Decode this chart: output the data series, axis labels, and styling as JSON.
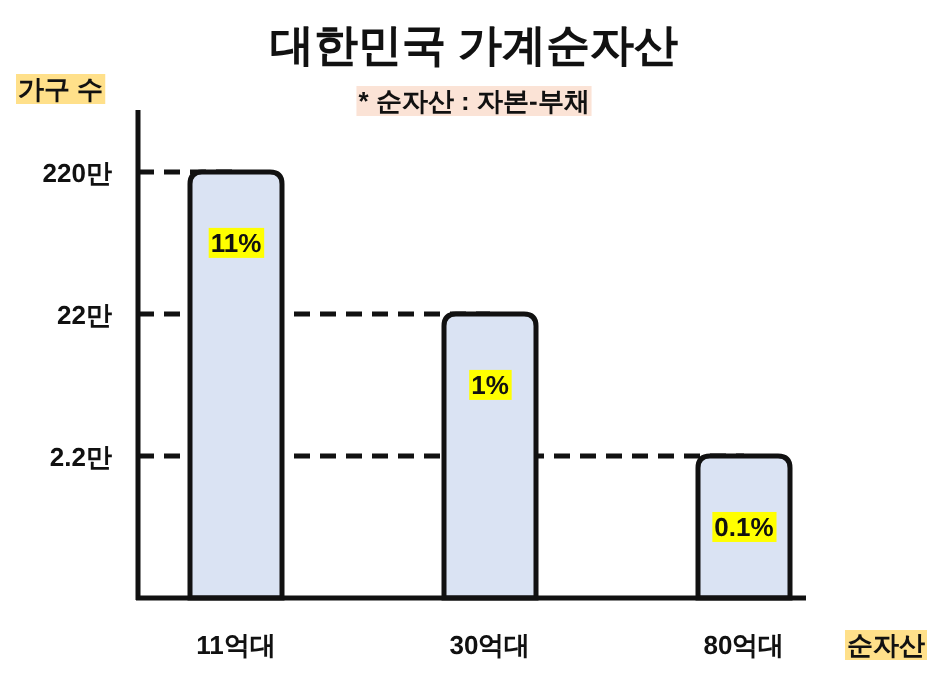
{
  "chart_data": {
    "type": "bar",
    "title": "대한민국 가계순자산",
    "subtitle": "* 순자산 : 자본-부채",
    "xlabel": "순자산",
    "ylabel": "가구 수",
    "categories": [
      "11억대",
      "30억대",
      "80억대"
    ],
    "values": [
      220,
      22,
      2.2
    ],
    "color": "#dae3f3",
    "annotations": [
      "11%",
      "1%",
      "0.1%"
    ],
    "log": true,
    "ylim": [
      0.22,
      600
    ],
    "yticks": [
      {
        "value": 2.2,
        "label": "2.2만"
      },
      {
        "value": 22,
        "label": "22만"
      },
      {
        "value": 220,
        "label": "220만"
      }
    ],
    "ref_lines": [
      {
        "axis": "y",
        "value": 220,
        "line_style": "dashed"
      },
      {
        "axis": "y",
        "value": 22,
        "line_style": "dashed"
      },
      {
        "axis": "y",
        "value": 2.2,
        "line_style": "dashed"
      }
    ]
  }
}
